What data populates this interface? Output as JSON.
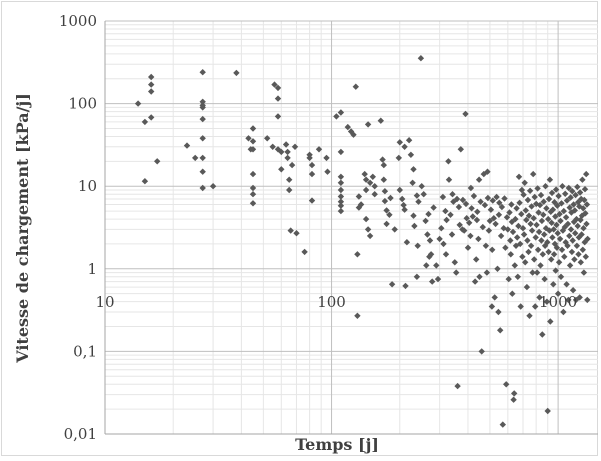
{
  "chart_data": {
    "type": "scatter",
    "xlabel": "Temps [j]",
    "ylabel": "Vitesse de chargement [kPa/j]",
    "x_scale": "log",
    "y_scale": "log",
    "xlim": [
      10,
      1500
    ],
    "ylim": [
      0.01,
      1000
    ],
    "x_tick_labels": [
      "10",
      "100",
      "1000"
    ],
    "y_tick_labels": [
      "0,01",
      "0,1",
      "1",
      "10",
      "100",
      "1000"
    ],
    "x_tick_values": [
      10,
      100,
      1000
    ],
    "y_tick_values": [
      0.01,
      0.1,
      1,
      10,
      100,
      1000
    ],
    "grid": true,
    "marker_color": "#595959",
    "grid_major_color": "#bfbfbf",
    "grid_minor_color": "#e6e6e6",
    "points": [
      [
        14,
        100
      ],
      [
        15,
        60
      ],
      [
        15,
        11.5
      ],
      [
        16,
        210
      ],
      [
        16,
        170
      ],
      [
        16,
        140
      ],
      [
        16,
        68
      ],
      [
        17,
        20
      ],
      [
        23,
        31
      ],
      [
        25,
        22
      ],
      [
        27,
        240
      ],
      [
        27,
        105
      ],
      [
        27,
        95
      ],
      [
        27,
        90
      ],
      [
        27,
        65
      ],
      [
        27,
        38
      ],
      [
        27,
        22
      ],
      [
        27,
        15
      ],
      [
        27,
        9.5
      ],
      [
        30,
        10
      ],
      [
        38,
        235
      ],
      [
        43,
        38
      ],
      [
        44,
        28
      ],
      [
        45,
        50
      ],
      [
        45,
        35
      ],
      [
        45,
        28
      ],
      [
        45,
        14
      ],
      [
        45,
        9.5
      ],
      [
        45,
        8
      ],
      [
        45,
        6.2
      ],
      [
        52,
        38
      ],
      [
        55,
        30
      ],
      [
        56,
        170
      ],
      [
        58,
        155
      ],
      [
        58,
        115
      ],
      [
        58,
        28
      ],
      [
        58,
        70
      ],
      [
        60,
        26
      ],
      [
        60,
        16
      ],
      [
        63,
        32
      ],
      [
        64,
        26
      ],
      [
        64,
        22
      ],
      [
        65,
        12
      ],
      [
        65,
        9
      ],
      [
        66,
        2.9
      ],
      [
        67,
        18
      ],
      [
        69,
        30
      ],
      [
        70,
        2.7
      ],
      [
        76,
        1.6
      ],
      [
        80,
        24
      ],
      [
        80,
        22
      ],
      [
        82,
        18
      ],
      [
        82,
        14
      ],
      [
        82,
        6.7
      ],
      [
        88,
        28
      ],
      [
        95,
        22
      ],
      [
        96,
        15
      ],
      [
        105,
        70
      ],
      [
        110,
        78
      ],
      [
        110,
        26
      ],
      [
        110,
        13
      ],
      [
        110,
        11
      ],
      [
        110,
        9
      ],
      [
        110,
        7.5
      ],
      [
        110,
        6.5
      ],
      [
        110,
        5.8
      ],
      [
        110,
        5
      ],
      [
        118,
        52
      ],
      [
        122,
        46
      ],
      [
        125,
        42
      ],
      [
        128,
        160
      ],
      [
        130,
        1.5
      ],
      [
        130,
        0.27
      ],
      [
        132,
        7.5
      ],
      [
        132,
        5.5
      ],
      [
        135,
        6
      ],
      [
        140,
        14
      ],
      [
        142,
        12
      ],
      [
        142,
        9
      ],
      [
        142,
        4
      ],
      [
        145,
        56
      ],
      [
        145,
        3
      ],
      [
        148,
        2.5
      ],
      [
        148,
        11
      ],
      [
        152,
        13
      ],
      [
        155,
        10
      ],
      [
        155,
        8
      ],
      [
        165,
        62
      ],
      [
        168,
        21
      ],
      [
        170,
        18
      ],
      [
        170,
        12
      ],
      [
        172,
        8.7
      ],
      [
        172,
        6.6
      ],
      [
        175,
        5.1
      ],
      [
        175,
        3.5
      ],
      [
        180,
        4.5
      ],
      [
        182,
        7.2
      ],
      [
        185,
        0.65
      ],
      [
        190,
        3
      ],
      [
        198,
        22
      ],
      [
        200,
        34
      ],
      [
        200,
        9
      ],
      [
        205,
        7
      ],
      [
        208,
        5.9
      ],
      [
        210,
        30
      ],
      [
        210,
        5.2
      ],
      [
        212,
        0.62
      ],
      [
        215,
        2.1
      ],
      [
        220,
        36
      ],
      [
        224,
        24
      ],
      [
        228,
        11
      ],
      [
        230,
        16
      ],
      [
        230,
        4.4
      ],
      [
        232,
        3.3
      ],
      [
        238,
        7.7
      ],
      [
        238,
        0.8
      ],
      [
        240,
        1.9
      ],
      [
        242,
        6.5
      ],
      [
        248,
        355
      ],
      [
        250,
        10
      ],
      [
        255,
        8
      ],
      [
        260,
        3.8
      ],
      [
        262,
        1.1
      ],
      [
        265,
        2.6
      ],
      [
        268,
        4.6
      ],
      [
        270,
        1.4
      ],
      [
        272,
        2.2
      ],
      [
        275,
        1.5
      ],
      [
        278,
        0.7
      ],
      [
        282,
        5.5
      ],
      [
        290,
        1.1
      ],
      [
        295,
        0.75
      ],
      [
        300,
        2.3
      ],
      [
        305,
        3.1
      ],
      [
        310,
        7.4
      ],
      [
        312,
        2
      ],
      [
        318,
        5
      ],
      [
        320,
        1.5
      ],
      [
        322,
        3.9
      ],
      [
        328,
        20
      ],
      [
        330,
        12
      ],
      [
        335,
        4.5
      ],
      [
        340,
        2.6
      ],
      [
        342,
        8
      ],
      [
        345,
        6.5
      ],
      [
        350,
        1.2
      ],
      [
        355,
        0.9
      ],
      [
        358,
        7
      ],
      [
        360,
        0.038
      ],
      [
        365,
        5.6
      ],
      [
        368,
        3.4
      ],
      [
        372,
        28
      ],
      [
        378,
        3
      ],
      [
        380,
        6.8
      ],
      [
        385,
        2.9
      ],
      [
        390,
        75
      ],
      [
        392,
        6.1
      ],
      [
        395,
        4.1
      ],
      [
        400,
        1.8
      ],
      [
        405,
        3.6
      ],
      [
        410,
        2.5
      ],
      [
        412,
        9.5
      ],
      [
        415,
        5.4
      ],
      [
        420,
        4.3
      ],
      [
        425,
        7.6
      ],
      [
        430,
        0.7
      ],
      [
        435,
        1.3
      ],
      [
        438,
        3.9
      ],
      [
        440,
        4.9
      ],
      [
        445,
        2.3
      ],
      [
        448,
        12
      ],
      [
        450,
        0.8
      ],
      [
        455,
        6.5
      ],
      [
        460,
        0.1
      ],
      [
        465,
        3.2
      ],
      [
        470,
        14
      ],
      [
        475,
        5.9
      ],
      [
        480,
        1.9
      ],
      [
        485,
        0.9
      ],
      [
        488,
        15
      ],
      [
        490,
        7.2
      ],
      [
        495,
        2.9
      ],
      [
        500,
        3.8
      ],
      [
        505,
        5.2
      ],
      [
        510,
        0.35
      ],
      [
        512,
        1.7
      ],
      [
        515,
        6.7
      ],
      [
        520,
        4.1
      ],
      [
        525,
        0.45
      ],
      [
        530,
        3.5
      ],
      [
        535,
        7.4
      ],
      [
        540,
        1
      ],
      [
        545,
        0.3
      ],
      [
        548,
        4.5
      ],
      [
        550,
        6.3
      ],
      [
        555,
        0.18
      ],
      [
        560,
        2.5
      ],
      [
        565,
        5.6
      ],
      [
        570,
        0.013
      ],
      [
        575,
        3.1
      ],
      [
        580,
        7.1
      ],
      [
        585,
        1.8
      ],
      [
        590,
        0.04
      ],
      [
        595,
        4.2
      ],
      [
        600,
        3
      ],
      [
        605,
        0.75
      ],
      [
        610,
        4.8
      ],
      [
        615,
        2.2
      ],
      [
        618,
        1.5
      ],
      [
        622,
        6
      ],
      [
        625,
        3.7
      ],
      [
        628,
        0.5
      ],
      [
        632,
        2.8
      ],
      [
        636,
        0.026
      ],
      [
        640,
        0.031
      ],
      [
        644,
        1.1
      ],
      [
        648,
        4
      ],
      [
        652,
        1.9
      ],
      [
        656,
        5.4
      ],
      [
        660,
        2.4
      ],
      [
        664,
        0.8
      ],
      [
        668,
        3.3
      ],
      [
        672,
        13
      ],
      [
        676,
        6.3
      ],
      [
        680,
        2
      ],
      [
        684,
        0.35
      ],
      [
        688,
        4.6
      ],
      [
        692,
        9
      ],
      [
        696,
        1.4
      ],
      [
        700,
        3.1
      ],
      [
        704,
        7.9
      ],
      [
        708,
        2.6
      ],
      [
        712,
        11
      ],
      [
        716,
        1.2
      ],
      [
        720,
        5.1
      ],
      [
        724,
        3.9
      ],
      [
        728,
        0.6
      ],
      [
        732,
        2.2
      ],
      [
        736,
        6.8
      ],
      [
        740,
        1.6
      ],
      [
        744,
        4.4
      ],
      [
        748,
        0.27
      ],
      [
        752,
        8.8
      ],
      [
        756,
        3.5
      ],
      [
        760,
        1.9
      ],
      [
        764,
        5.7
      ],
      [
        768,
        2.9
      ],
      [
        772,
        0.9
      ],
      [
        776,
        14
      ],
      [
        780,
        4.1
      ],
      [
        784,
        1.3
      ],
      [
        788,
        7.4
      ],
      [
        792,
        0.35
      ],
      [
        796,
        2.4
      ],
      [
        800,
        6.1
      ],
      [
        804,
        3.4
      ],
      [
        808,
        0.9
      ],
      [
        812,
        9.4
      ],
      [
        816,
        1.7
      ],
      [
        820,
        4.8
      ],
      [
        824,
        2.8
      ],
      [
        828,
        0.45
      ],
      [
        832,
        5.9
      ],
      [
        836,
        1.1
      ],
      [
        840,
        7.8
      ],
      [
        844,
        2.2
      ],
      [
        848,
        3.8
      ],
      [
        852,
        0.16
      ],
      [
        856,
        1.5
      ],
      [
        860,
        4.5
      ],
      [
        864,
        6.5
      ],
      [
        868,
        2.6
      ],
      [
        872,
        0.75
      ],
      [
        876,
        1.9
      ],
      [
        880,
        10
      ],
      [
        884,
        3.1
      ],
      [
        888,
        5.4
      ],
      [
        892,
        0.4
      ],
      [
        896,
        2.1
      ],
      [
        900,
        0.019
      ],
      [
        904,
        4
      ],
      [
        908,
        1.6
      ],
      [
        912,
        7
      ],
      [
        916,
        2.9
      ],
      [
        920,
        12
      ],
      [
        924,
        0.23
      ],
      [
        928,
        4.9
      ],
      [
        932,
        1.3
      ],
      [
        936,
        3.6
      ],
      [
        940,
        8.3
      ],
      [
        944,
        2.4
      ],
      [
        948,
        5.2
      ],
      [
        952,
        0.65
      ],
      [
        956,
        3
      ],
      [
        960,
        1.5
      ],
      [
        964,
        6.4
      ],
      [
        968,
        2
      ],
      [
        972,
        4.3
      ],
      [
        976,
        0.95
      ],
      [
        980,
        9.1
      ],
      [
        984,
        3.4
      ],
      [
        988,
        1.8
      ],
      [
        992,
        5.8
      ],
      [
        996,
        2.7
      ],
      [
        1000,
        0.5
      ],
      [
        1005,
        7.6
      ],
      [
        1010,
        1.2
      ],
      [
        1015,
        4.6
      ],
      [
        1020,
        2.3
      ],
      [
        1025,
        3.8
      ],
      [
        1030,
        0.8
      ],
      [
        1035,
        6.2
      ],
      [
        1040,
        1.7
      ],
      [
        1045,
        10
      ],
      [
        1050,
        2.9
      ],
      [
        1055,
        0.3
      ],
      [
        1060,
        5
      ],
      [
        1065,
        1.4
      ],
      [
        1070,
        3.2
      ],
      [
        1075,
        8.1
      ],
      [
        1080,
        2.1
      ],
      [
        1085,
        4.2
      ],
      [
        1090,
        0.65
      ],
      [
        1095,
        6.7
      ],
      [
        1100,
        1.9
      ],
      [
        1105,
        3.5
      ],
      [
        1110,
        0.42
      ],
      [
        1115,
        9.5
      ],
      [
        1120,
        2.5
      ],
      [
        1125,
        5.5
      ],
      [
        1130,
        1.1
      ],
      [
        1135,
        7.3
      ],
      [
        1140,
        3
      ],
      [
        1145,
        4.8
      ],
      [
        1150,
        1.6
      ],
      [
        1155,
        8.7
      ],
      [
        1160,
        2.2
      ],
      [
        1165,
        0.55
      ],
      [
        1170,
        6
      ],
      [
        1175,
        3.7
      ],
      [
        1180,
        1.3
      ],
      [
        1185,
        5.1
      ],
      [
        1190,
        2.7
      ],
      [
        1195,
        7.8
      ],
      [
        1200,
        0.42
      ],
      [
        1205,
        4
      ],
      [
        1210,
        1.9
      ],
      [
        1215,
        9.8
      ],
      [
        1220,
        3.3
      ],
      [
        1225,
        6.4
      ],
      [
        1230,
        1.5
      ],
      [
        1235,
        2.4
      ],
      [
        1240,
        5.7
      ],
      [
        1245,
        0.45
      ],
      [
        1250,
        8.4
      ],
      [
        1255,
        3.9
      ],
      [
        1260,
        1.2
      ],
      [
        1265,
        7
      ],
      [
        1270,
        2.6
      ],
      [
        1275,
        4.4
      ],
      [
        1280,
        12
      ],
      [
        1285,
        1.7
      ],
      [
        1290,
        5.4
      ],
      [
        1295,
        3.1
      ],
      [
        1300,
        0.9
      ],
      [
        1305,
        6.8
      ],
      [
        1310,
        2.1
      ],
      [
        1315,
        9.2
      ],
      [
        1320,
        4.7
      ],
      [
        1325,
        1.4
      ],
      [
        1330,
        14
      ],
      [
        1335,
        3.5
      ],
      [
        1340,
        6
      ],
      [
        1345,
        0.42
      ],
      [
        1350,
        2.3
      ]
    ]
  }
}
